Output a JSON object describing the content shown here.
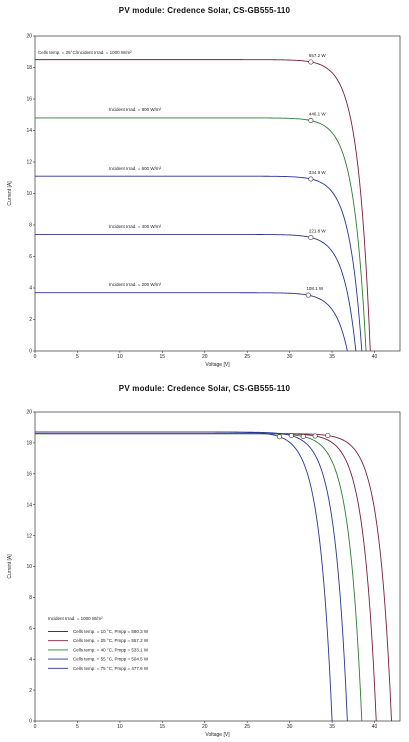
{
  "chart_data": [
    {
      "type": "line",
      "title": "PV module:  Credence Solar,  CS-GB555-110",
      "xlabel": "Voltage [V]",
      "ylabel": "Current [A]",
      "xlim": [
        0,
        43
      ],
      "ylim": [
        0,
        20
      ],
      "xticks": [
        "0",
        "5",
        "10",
        "15",
        "20",
        "25",
        "30",
        "35",
        "40"
      ],
      "yticks": [
        "0",
        "2",
        "4",
        "6",
        "8",
        "10",
        "12",
        "14",
        "16",
        "18",
        "20"
      ],
      "grid": false,
      "series": [
        {
          "label": "Cells temp. = 25°C/Incident Irrad. = 1000 W/m²",
          "irradiance": 1000,
          "isc": 18.5,
          "voc": 39.5,
          "a": 1.45,
          "vmp": 32.5,
          "pmp_label": "557.2 W",
          "color": "#7a1f3d"
        },
        {
          "label": "Incident Irrad. = 800 W/m²",
          "irradiance": 800,
          "isc": 14.8,
          "voc": 39.0,
          "a": 1.45,
          "vmp": 32.5,
          "pmp_label": "446.1 W",
          "color": "#2e7d32"
        },
        {
          "label": "Incident Irrad. = 600 W/m²",
          "irradiance": 600,
          "isc": 11.1,
          "voc": 38.5,
          "a": 1.45,
          "vmp": 32.5,
          "pmp_label": "334.9 W",
          "color": "#283593"
        },
        {
          "label": "Incident Irrad. = 400 W/m²",
          "irradiance": 400,
          "isc": 7.4,
          "voc": 37.8,
          "a": 1.45,
          "vmp": 32.5,
          "pmp_label": "221.8 W",
          "color": "#283593"
        },
        {
          "label": "Incident Irrad. = 200 W/m²",
          "irradiance": 200,
          "isc": 3.7,
          "voc": 36.8,
          "a": 1.45,
          "vmp": 32.2,
          "pmp_label": "108.1 W",
          "color": "#283593"
        }
      ]
    },
    {
      "type": "line",
      "title": "PV module:  Credence Solar,  CS-GB555-110",
      "xlabel": "Voltage [V]",
      "ylabel": "Current [A]",
      "xlim": [
        0,
        43
      ],
      "ylim": [
        0,
        20
      ],
      "xticks": [
        "0",
        "5",
        "10",
        "15",
        "20",
        "25",
        "30",
        "35",
        "40"
      ],
      "yticks": [
        "0",
        "2",
        "4",
        "6",
        "8",
        "10",
        "12",
        "14",
        "16",
        "18",
        "20"
      ],
      "grid": false,
      "legend_title": "Incident Irrad. = 1000 W/m²",
      "legend_position": "bottom-left",
      "series": [
        {
          "label": "Cells temp. = 10 °C,  Pmpp = 580.3 W",
          "temp": 10,
          "isc": 18.6,
          "voc": 42.0,
          "a": 1.5,
          "vmp": 34.5,
          "color": "#7a1f3d"
        },
        {
          "label": "Cells temp. = 25 °C,  Pmpp = 557.2 W",
          "temp": 25,
          "isc": 18.6,
          "voc": 40.2,
          "a": 1.5,
          "vmp": 33.0,
          "color": "#7a1f3d"
        },
        {
          "label": "Cells temp. = 40 °C,  Pmpp = 533.1 W",
          "temp": 40,
          "isc": 18.6,
          "voc": 38.5,
          "a": 1.5,
          "vmp": 31.6,
          "color": "#2e7d32"
        },
        {
          "label": "Cells temp. = 55 °C,  Pmpp = 504.5 W",
          "temp": 55,
          "isc": 18.7,
          "voc": 36.8,
          "a": 1.5,
          "vmp": 30.2,
          "color": "#283593"
        },
        {
          "label": "Cells temp. = 75 °C,  Pmpp = 477.6 W",
          "temp": 75,
          "isc": 18.7,
          "voc": 35.0,
          "a": 1.5,
          "vmp": 28.8,
          "color": "#283593"
        }
      ]
    }
  ]
}
